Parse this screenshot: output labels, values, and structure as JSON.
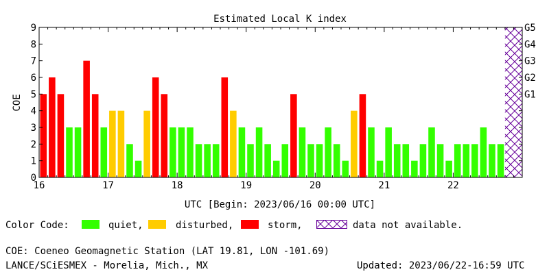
{
  "chart_data": {
    "type": "bar",
    "title": "Estimated Local K index",
    "ylabel": "COE",
    "xlabel": "UTC [Begin: 2023/06/16 00:00 UTC]",
    "ylim": [
      0,
      9
    ],
    "y_ticks": [
      "0",
      "1",
      "2",
      "3",
      "4",
      "5",
      "6",
      "7",
      "8",
      "9"
    ],
    "x_range_days": [
      16,
      23
    ],
    "x_tick_labels": [
      "16",
      "17",
      "18",
      "19",
      "20",
      "21",
      "22"
    ],
    "g_levels": [
      {
        "label": "G1",
        "k": 5
      },
      {
        "label": "G2",
        "k": 6
      },
      {
        "label": "G3",
        "k": 7
      },
      {
        "label": "G4",
        "k": 8
      },
      {
        "label": "G5",
        "k": 9
      }
    ],
    "interval_hours": 3,
    "values": [
      5,
      6,
      5,
      3,
      3,
      7,
      5,
      3,
      4,
      4,
      2,
      1,
      4,
      6,
      5,
      3,
      3,
      3,
      2,
      2,
      2,
      6,
      4,
      3,
      2,
      3,
      2,
      1,
      2,
      5,
      3,
      2,
      2,
      3,
      2,
      1,
      4,
      5,
      3,
      1,
      3,
      2,
      2,
      1,
      2,
      3,
      2,
      1,
      2,
      2,
      2,
      3,
      2,
      2
    ],
    "statuses": [
      "storm",
      "storm",
      "storm",
      "quiet",
      "quiet",
      "storm",
      "storm",
      "quiet",
      "disturbed",
      "disturbed",
      "quiet",
      "quiet",
      "disturbed",
      "storm",
      "storm",
      "quiet",
      "quiet",
      "quiet",
      "quiet",
      "quiet",
      "quiet",
      "storm",
      "disturbed",
      "quiet",
      "quiet",
      "quiet",
      "quiet",
      "quiet",
      "quiet",
      "storm",
      "quiet",
      "quiet",
      "quiet",
      "quiet",
      "quiet",
      "quiet",
      "disturbed",
      "storm",
      "quiet",
      "quiet",
      "quiet",
      "quiet",
      "quiet",
      "quiet",
      "quiet",
      "quiet",
      "quiet",
      "quiet",
      "quiet",
      "quiet",
      "quiet",
      "quiet",
      "quiet",
      "quiet"
    ],
    "no_data_slots": 2,
    "colors": {
      "quiet": "#33ff00",
      "disturbed": "#ffcc00",
      "storm": "#ff0000",
      "no_data": "#660099"
    }
  },
  "legend": {
    "title": "Color Code:",
    "quiet": "quiet,",
    "disturbed": "disturbed,",
    "storm": "storm,",
    "no_data": "data not available."
  },
  "footer": {
    "station": "COE: Coeneo Geomagnetic Station (LAT   19.81, LON -101.69)",
    "org": "LANCE/SCiESMEX - Morelia, Mich., MX",
    "updated": "Updated: 2023/06/22-16:59 UTC"
  }
}
